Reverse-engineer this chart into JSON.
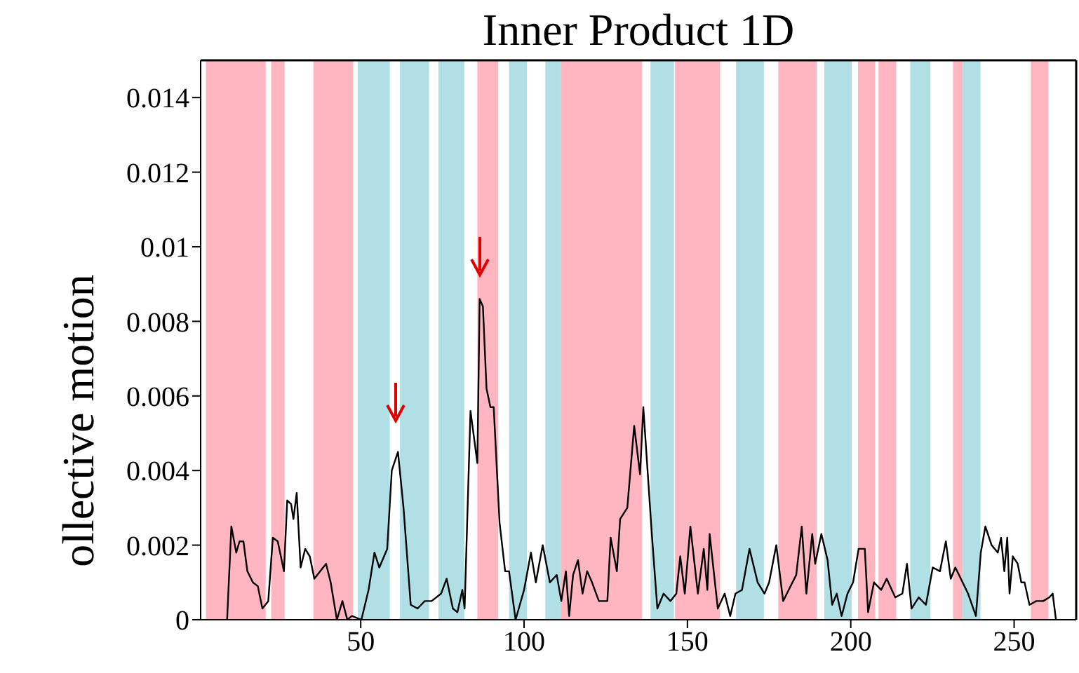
{
  "chart_data": {
    "type": "line",
    "title": "Inner Product 1D",
    "ylabel": "ollective motion",
    "xlim": [
      1,
      269
    ],
    "xticks": [
      50,
      100,
      150,
      200,
      250
    ],
    "ylim": [
      0,
      0.015
    ],
    "yticks": [
      0,
      0.002,
      0.004,
      0.006,
      0.008,
      0.01,
      0.012,
      0.014
    ],
    "marker": "none",
    "line_style": "solid",
    "bands": [
      {
        "axis": "x",
        "from": 2.6,
        "to": 20.9,
        "color": "#ffb6c1"
      },
      {
        "axis": "x",
        "from": 22.6,
        "to": 26.7,
        "color": "#ffb6c1"
      },
      {
        "axis": "x",
        "from": 35.5,
        "to": 47.7,
        "color": "#ffb6c1"
      },
      {
        "axis": "x",
        "from": 49.1,
        "to": 58.9,
        "color": "#b0e0e6"
      },
      {
        "axis": "x",
        "from": 62,
        "to": 70.9,
        "color": "#b0e0e6"
      },
      {
        "axis": "x",
        "from": 73.8,
        "to": 81.7,
        "color": "#b0e0e6"
      },
      {
        "axis": "x",
        "from": 85.7,
        "to": 92.1,
        "color": "#ffb6c1"
      },
      {
        "axis": "x",
        "from": 95.4,
        "to": 100.9,
        "color": "#b0e0e6"
      },
      {
        "axis": "x",
        "from": 106.5,
        "to": 111.2,
        "color": "#b0e0e6"
      },
      {
        "axis": "x",
        "from": 111.2,
        "to": 136.1,
        "color": "#ffb6c1"
      },
      {
        "axis": "x",
        "from": 138.7,
        "to": 145.9,
        "color": "#b0e0e6"
      },
      {
        "axis": "x",
        "from": 146.2,
        "to": 160,
        "color": "#ffb6c1"
      },
      {
        "axis": "x",
        "from": 164.9,
        "to": 173.4,
        "color": "#b0e0e6"
      },
      {
        "axis": "x",
        "from": 177.8,
        "to": 189.6,
        "color": "#ffb6c1"
      },
      {
        "axis": "x",
        "from": 191.9,
        "to": 200.3,
        "color": "#b0e0e6"
      },
      {
        "axis": "x",
        "from": 202.2,
        "to": 207.5,
        "color": "#ffb6c1"
      },
      {
        "axis": "x",
        "from": 208.5,
        "to": 213.9,
        "color": "#ffb6c1"
      },
      {
        "axis": "x",
        "from": 218.2,
        "to": 224.4,
        "color": "#b0e0e6"
      },
      {
        "axis": "x",
        "from": 231.3,
        "to": 234.3,
        "color": "#ffb6c1"
      },
      {
        "axis": "x",
        "from": 234.3,
        "to": 239.7,
        "color": "#b0e0e6"
      },
      {
        "axis": "x",
        "from": 255.1,
        "to": 260.5,
        "color": "#ffb6c1"
      }
    ],
    "series": [
      {
        "color": "#000000",
        "x": [
          9.1,
          10.4,
          11.9,
          12.9,
          14.1,
          15.3,
          17,
          18.5,
          19.9,
          21.7,
          23.1,
          24.6,
          26.5,
          27.5,
          28.7,
          29.4,
          30.4,
          31.6,
          33,
          34.4,
          35.8,
          37.6,
          39.4,
          40.8,
          42.7,
          44.4,
          45.9,
          47.3,
          50.2,
          52.4,
          54.2,
          55.7,
          58.1,
          59.5,
          61.4,
          63.1,
          65.3,
          67.4,
          69.6,
          71.7,
          74.6,
          76.3,
          78.2,
          79.6,
          81.1,
          81.8,
          83.6,
          85.7,
          86.4,
          87.4,
          88.5,
          89.7,
          90.7,
          92.5,
          94.2,
          95.4,
          97.4,
          100,
          102.1,
          103.6,
          105.7,
          107.9,
          110,
          111.4,
          112.8,
          113.8,
          115,
          116.5,
          117.9,
          119.3,
          120.8,
          122.9,
          125.5,
          126.5,
          128.4,
          129.4,
          131.6,
          133.7,
          135.5,
          136.5,
          139.1,
          140.8,
          142.7,
          144.8,
          146.6,
          147.8,
          149.2,
          150.9,
          153.2,
          155,
          156.1,
          156.8,
          159.3,
          161.4,
          163.1,
          164.7,
          166.7,
          169,
          171.5,
          173.6,
          175,
          177.2,
          179.3,
          181,
          183.3,
          185,
          186.4,
          188.2,
          189.1,
          191,
          192.9,
          194.3,
          195.7,
          197.2,
          199,
          200.7,
          202.4,
          204.3,
          205.3,
          207.1,
          209.3,
          211,
          213.6,
          215.8,
          217.2,
          218.6,
          220.8,
          223,
          225.1,
          227.3,
          229.1,
          230.6,
          232,
          233.7,
          235.9,
          238.3,
          239.8,
          241.2,
          243.1,
          245,
          246,
          247,
          247.9,
          248.6,
          249.6,
          251.1,
          252.2,
          253.2,
          254.7,
          256.8,
          258.9,
          260.8,
          261.8,
          262.8
        ],
        "values": [
          0,
          0.0025,
          0.0018,
          0.0021,
          0.0021,
          0.0013,
          0.001,
          0.0009,
          0.0003,
          0.0005,
          0.0022,
          0.0021,
          0.0013,
          0.0032,
          0.0031,
          0.0027,
          0.0034,
          0.0014,
          0.0019,
          0.0017,
          0.0011,
          0.0013,
          0.0015,
          0.001,
          0,
          0.0005,
          0,
          0.0001,
          0,
          0.0008,
          0.0018,
          0.0014,
          0.0019,
          0.004,
          0.0045,
          0.003,
          0.0004,
          0.0003,
          0.0005,
          0.0005,
          0.0007,
          0.0011,
          0.0003,
          0.0002,
          0.0008,
          0.0003,
          0.0056,
          0.0042,
          0.0086,
          0.0084,
          0.0062,
          0.0057,
          0.0057,
          0.0026,
          0.0013,
          0.0013,
          0,
          0.0008,
          0.0018,
          0.001,
          0.002,
          0.001,
          0.0012,
          0.0005,
          0.0013,
          0.0001,
          0.0012,
          0.0016,
          0.0007,
          0.0013,
          0.001,
          0.0005,
          0.0005,
          0.0022,
          0.0013,
          0.0027,
          0.003,
          0.0052,
          0.0039,
          0.0057,
          0.0023,
          0.0003,
          0.0007,
          0.0005,
          0.0007,
          0.0017,
          0.0007,
          0.0025,
          0.0007,
          0.0019,
          0.0008,
          0.0023,
          0.0003,
          0.0007,
          0.0001,
          0.0007,
          0.0008,
          0.0019,
          0.001,
          0.0007,
          0.001,
          0.002,
          0.0005,
          0.0008,
          0.0012,
          0.0025,
          0.0007,
          0.0023,
          0.0015,
          0.0023,
          0.0016,
          0.0004,
          0.0007,
          0.0001,
          0.0007,
          0.001,
          0.0019,
          0.0019,
          0.0002,
          0.001,
          0.0008,
          0.0011,
          0.0006,
          0.0007,
          0.0015,
          0.0003,
          0.0006,
          0.0004,
          0.0014,
          0.0013,
          0.0021,
          0.0011,
          0.0014,
          0.0011,
          0.0007,
          0.0001,
          0.0018,
          0.0025,
          0.002,
          0.0018,
          0.0022,
          0.0013,
          0.0022,
          0.0007,
          0.0017,
          0.0015,
          0.001,
          0.001,
          0.0004,
          0.0005,
          0.0005,
          0.0006,
          0.0007,
          0
        ]
      }
    ]
  }
}
